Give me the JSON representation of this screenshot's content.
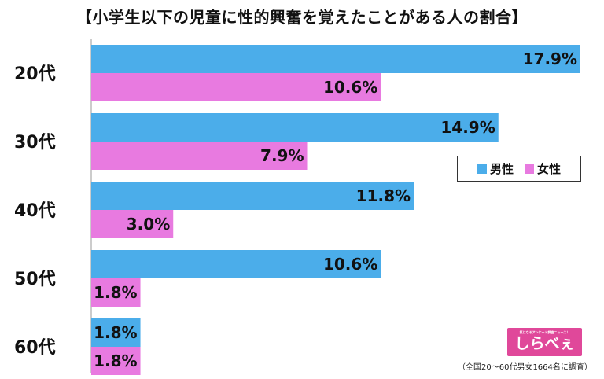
{
  "chart_data": {
    "type": "bar",
    "orientation": "horizontal",
    "title": "【小学生以下の児童に性的興奮を覚えたことがある人の割合】",
    "categories": [
      "20代",
      "30代",
      "40代",
      "50代",
      "60代"
    ],
    "series": [
      {
        "name": "男性",
        "color": "#4badea",
        "values": [
          17.9,
          14.9,
          11.8,
          10.6,
          1.8
        ]
      },
      {
        "name": "女性",
        "color": "#e87ae0",
        "values": [
          10.6,
          7.9,
          3.0,
          1.8,
          1.8
        ]
      }
    ],
    "value_labels": {
      "男性": [
        "17.9%",
        "14.9%",
        "11.8%",
        "10.6%",
        "1.8%"
      ],
      "女性": [
        "10.6%",
        "7.9%",
        "3.0%",
        "1.8%",
        "1.8%"
      ]
    },
    "xlim": [
      0,
      17.9
    ],
    "grid": false,
    "legend_position": "right"
  },
  "logo": {
    "tagline": "気になるアンケート調査ニュース！",
    "name": "しらべぇ"
  },
  "source_note": "（全国20～60代男女1664名に調査）"
}
